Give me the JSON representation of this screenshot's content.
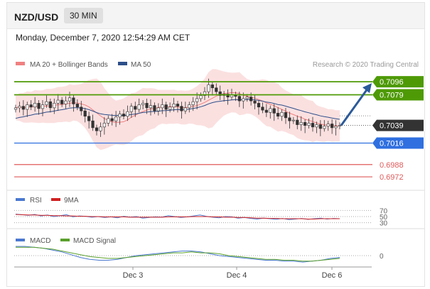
{
  "header": {
    "symbol": "NZD/USD",
    "timeframe": "30 MIN",
    "datetime": "Monday, December 7, 2020 12:54:29 AM CET"
  },
  "chart_data": [
    {
      "type": "candlestick",
      "legend": [
        {
          "name": "MA 20 + Bollinger Bands",
          "color": "#f08080"
        },
        {
          "name": "MA 50",
          "color": "#2c4f8a"
        }
      ],
      "credit": "Research © 2020 Trading Central",
      "x_ticks": [
        "Dec 3",
        "Dec 4",
        "Dec 6"
      ],
      "ylim": [
        0.696,
        0.711
      ],
      "levels": [
        {
          "value": 0.7096,
          "label": "0.7096",
          "kind": "resistance",
          "color": "#4e9a06"
        },
        {
          "value": 0.7079,
          "label": "0.7079",
          "kind": "resistance",
          "color": "#4e9a06"
        },
        {
          "value": 0.7016,
          "label": "0.7016",
          "kind": "support",
          "color": "#2f6fe0"
        },
        {
          "value": 0.6988,
          "label": "0.6988",
          "kind": "support",
          "color": "#e05a5a"
        },
        {
          "value": 0.6972,
          "label": "0.6972",
          "kind": "support",
          "color": "#e05a5a"
        }
      ],
      "last_price": {
        "value": 0.7039,
        "label": "0.7039"
      },
      "closes": [
        0.7062,
        0.7064,
        0.706,
        0.7066,
        0.7063,
        0.7068,
        0.7061,
        0.7066,
        0.707,
        0.7062,
        0.7068,
        0.7072,
        0.7067,
        0.7071,
        0.7075,
        0.7067,
        0.7063,
        0.7058,
        0.7051,
        0.7045,
        0.7036,
        0.7032,
        0.7037,
        0.7042,
        0.7048,
        0.7045,
        0.705,
        0.7054,
        0.7051,
        0.7057,
        0.7064,
        0.706,
        0.7066,
        0.7068,
        0.7062,
        0.7065,
        0.7058,
        0.7062,
        0.7066,
        0.706,
        0.7063,
        0.7067,
        0.7064,
        0.7058,
        0.7062,
        0.7066,
        0.707,
        0.7074,
        0.7078,
        0.7083,
        0.7092,
        0.7088,
        0.7083,
        0.7078,
        0.708,
        0.7076,
        0.7079,
        0.7077,
        0.7071,
        0.7074,
        0.7076,
        0.7071,
        0.7068,
        0.7063,
        0.7059,
        0.7056,
        0.7061,
        0.7055,
        0.7051,
        0.7056,
        0.7049,
        0.7045,
        0.7046,
        0.704,
        0.7043,
        0.7039,
        0.7042,
        0.7037,
        0.704,
        0.7035,
        0.7038,
        0.7041,
        0.7036,
        0.7038,
        0.7039
      ]
    },
    {
      "type": "line",
      "legend": [
        {
          "name": "RSI",
          "color": "#4a78d0"
        },
        {
          "name": "9MA",
          "color": "#d02020"
        }
      ],
      "ylim": [
        20,
        80
      ],
      "levels": [
        70,
        50,
        30
      ],
      "level_labels": [
        "70",
        "50",
        "30"
      ],
      "series": [
        {
          "name": "RSI",
          "values": [
            58,
            56,
            54,
            57,
            52,
            55,
            50,
            53,
            56,
            49,
            52,
            51,
            48,
            50,
            47,
            49,
            46,
            51,
            48,
            50,
            45,
            47,
            49,
            48,
            53,
            50,
            47,
            49,
            52,
            55,
            51,
            48,
            46,
            50,
            49,
            45,
            47,
            44,
            42,
            45,
            43,
            41,
            44,
            40,
            42,
            44,
            41,
            43,
            45,
            42,
            44,
            43
          ]
        },
        {
          "name": "9MA",
          "values": [
            57,
            56,
            55,
            55,
            54,
            54,
            53,
            53,
            52,
            52,
            51,
            51,
            50,
            50,
            49,
            49,
            49,
            49,
            48,
            48,
            48,
            48,
            48,
            48,
            49,
            49,
            49,
            49,
            50,
            50,
            50,
            49,
            49,
            48,
            48,
            47,
            47,
            46,
            45,
            45,
            44,
            44,
            43,
            43,
            43,
            43,
            42,
            42,
            43,
            43,
            43,
            43
          ]
        }
      ]
    },
    {
      "type": "line",
      "legend": [
        {
          "name": "MACD",
          "color": "#4a78d0"
        },
        {
          "name": "MACD Signal",
          "color": "#5aa02c"
        }
      ],
      "zero_label": "0",
      "series": [
        {
          "name": "MACD",
          "values": [
            10,
            10,
            9,
            8,
            6,
            4,
            1,
            -2,
            -4,
            -5,
            -5,
            -4,
            -2,
            0,
            1,
            2,
            3,
            4,
            5,
            5,
            4,
            2,
            0,
            -1,
            -2,
            -3,
            -4,
            -5,
            -5,
            -6,
            -6,
            -7,
            -6,
            -5,
            -3,
            -2
          ]
        },
        {
          "name": "MACD Signal",
          "values": [
            9,
            9,
            9,
            8,
            7,
            5,
            3,
            1,
            -1,
            -2,
            -3,
            -3,
            -2,
            -1,
            0,
            1,
            2,
            3,
            3,
            4,
            3,
            3,
            2,
            0,
            -1,
            -2,
            -3,
            -4,
            -4,
            -5,
            -5,
            -6,
            -6,
            -5,
            -4,
            -3
          ]
        }
      ]
    }
  ]
}
